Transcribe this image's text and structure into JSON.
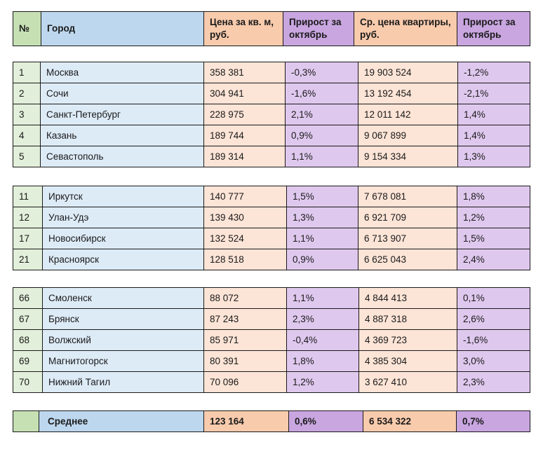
{
  "header": {
    "no": "№",
    "city": "Город",
    "price_per_m2": "Цена за кв. м, руб.",
    "growth_m2": "Прирост за октябрь",
    "avg_apartment_price": "Ср. цена квартиры, руб.",
    "growth_apartment": "Прирост за октябрь"
  },
  "blocks": [
    {
      "rows": [
        {
          "no": "1",
          "city": "Москва",
          "price_m2": "358 381",
          "growth_m2": "-0,3%",
          "avg_price": "19 903 524",
          "growth_avg": "-1,2%"
        },
        {
          "no": "2",
          "city": "Сочи",
          "price_m2": "304 941",
          "growth_m2": "-1,6%",
          "avg_price": "13 192 454",
          "growth_avg": "-2,1%"
        },
        {
          "no": "3",
          "city": "Санкт-Петербург",
          "price_m2": "228 975",
          "growth_m2": "2,1%",
          "avg_price": "12 011 142",
          "growth_avg": "1,4%"
        },
        {
          "no": "4",
          "city": "Казань",
          "price_m2": "189 744",
          "growth_m2": "0,9%",
          "avg_price": "9 067 899",
          "growth_avg": "1,4%"
        },
        {
          "no": "5",
          "city": "Севастополь",
          "price_m2": "189 314",
          "growth_m2": "1,1%",
          "avg_price": "9 154 334",
          "growth_avg": "1,3%"
        }
      ]
    },
    {
      "rows": [
        {
          "no": "11",
          "city": "Иркутск",
          "price_m2": "140 777",
          "growth_m2": "1,5%",
          "avg_price": "7 678 081",
          "growth_avg": "1,8%"
        },
        {
          "no": "12",
          "city": "Улан-Удэ",
          "price_m2": "139 430",
          "growth_m2": "1,3%",
          "avg_price": "6 921 709",
          "growth_avg": "1,2%"
        },
        {
          "no": "17",
          "city": "Новосибирск",
          "price_m2": "132 524",
          "growth_m2": "1,1%",
          "avg_price": "6 713 907",
          "growth_avg": "1,5%"
        },
        {
          "no": "21",
          "city": "Красноярск",
          "price_m2": "128 518",
          "growth_m2": "0,9%",
          "avg_price": "6 625 043",
          "growth_avg": "2,4%"
        }
      ]
    },
    {
      "rows": [
        {
          "no": "66",
          "city": "Смоленск",
          "price_m2": "88 072",
          "growth_m2": "1,1%",
          "avg_price": "4 844 413",
          "growth_avg": "0,1%"
        },
        {
          "no": "67",
          "city": "Брянск",
          "price_m2": "87 243",
          "growth_m2": "2,3%",
          "avg_price": "4 887 318",
          "growth_avg": "2,6%"
        },
        {
          "no": "68",
          "city": "Волжский",
          "price_m2": "85 971",
          "growth_m2": "-0,4%",
          "avg_price": "4 369 723",
          "growth_avg": "-1,6%"
        },
        {
          "no": "69",
          "city": "Магнитогорск",
          "price_m2": "80 391",
          "growth_m2": "1,8%",
          "avg_price": "4 385 304",
          "growth_avg": "3,0%"
        },
        {
          "no": "70",
          "city": "Нижний Тагил",
          "price_m2": "70 096",
          "growth_m2": "1,2%",
          "avg_price": "3 627 410",
          "growth_avg": "2,3%"
        }
      ]
    }
  ],
  "footer": {
    "no": "",
    "label": "Среднее",
    "price_m2": "123 164",
    "growth_m2": "0,6%",
    "avg_price": "6 534 322",
    "growth_avg": "0,7%"
  },
  "colors": {
    "no_header": "#c6e0b4",
    "city_header": "#bdd7ee",
    "price_header": "#f8cbad",
    "growth_header": "#c9a6e0",
    "no_cell": "#e2efda",
    "city_cell": "#ddebf7",
    "price_cell": "#fce4d6",
    "growth_cell": "#dfc8ee"
  }
}
